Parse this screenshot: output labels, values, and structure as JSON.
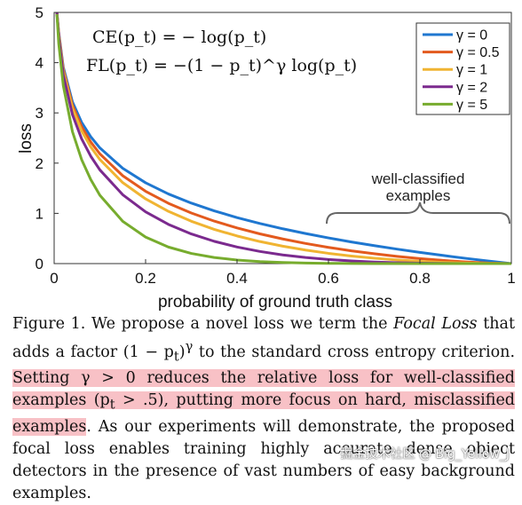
{
  "chart_data": {
    "type": "line",
    "xlabel": "probability of ground truth class",
    "ylabel": "loss",
    "xlim": [
      0,
      1
    ],
    "ylim": [
      0,
      5
    ],
    "xticks": [
      "0",
      "0.2",
      "0.4",
      "0.6",
      "0.8",
      "1"
    ],
    "yticks": [
      "0",
      "1",
      "2",
      "3",
      "4",
      "5"
    ],
    "grid": false,
    "legend_position": "top-right",
    "formula_ce": "CE(p_t) = − log(p_t)",
    "formula_fl": "FL(p_t) = −(1 − p_t)^γ log(p_t)",
    "annotation": [
      "well-classified",
      "examples"
    ],
    "x": [
      0.006,
      0.01,
      0.02,
      0.04,
      0.06,
      0.08,
      0.1,
      0.15,
      0.2,
      0.25,
      0.3,
      0.35,
      0.4,
      0.45,
      0.5,
      0.55,
      0.6,
      0.65,
      0.7,
      0.75,
      0.8,
      0.85,
      0.9,
      0.95,
      1.0
    ],
    "series": [
      {
        "name": "γ = 0",
        "gamma": 0,
        "color": "#1f77d0",
        "values": [
          5.116,
          4.605,
          3.912,
          3.219,
          2.813,
          2.526,
          2.303,
          1.897,
          1.609,
          1.386,
          1.204,
          1.05,
          0.916,
          0.799,
          0.693,
          0.598,
          0.511,
          0.431,
          0.357,
          0.288,
          0.223,
          0.163,
          0.105,
          0.051,
          0.0
        ]
      },
      {
        "name": "γ = 0.5",
        "gamma": 0.5,
        "color": "#e35a1e",
        "values": [
          5.101,
          4.582,
          3.872,
          3.154,
          2.727,
          2.422,
          2.184,
          1.749,
          1.439,
          1.2,
          1.007,
          0.846,
          0.71,
          0.592,
          0.49,
          0.401,
          0.323,
          0.254,
          0.196,
          0.144,
          0.1,
          0.063,
          0.033,
          0.011,
          0.0
        ]
      },
      {
        "name": "γ = 1",
        "gamma": 1,
        "color": "#f0b432",
        "values": [
          5.085,
          4.559,
          3.834,
          3.09,
          2.644,
          2.324,
          2.072,
          1.612,
          1.288,
          1.04,
          0.843,
          0.682,
          0.55,
          0.439,
          0.347,
          0.269,
          0.204,
          0.151,
          0.107,
          0.072,
          0.045,
          0.024,
          0.011,
          0.003,
          0.0
        ]
      },
      {
        "name": "γ = 2",
        "gamma": 2,
        "color": "#7b2a8e",
        "values": [
          5.055,
          4.513,
          3.757,
          2.966,
          2.486,
          2.138,
          1.865,
          1.371,
          1.03,
          0.78,
          0.59,
          0.444,
          0.33,
          0.242,
          0.173,
          0.121,
          0.082,
          0.053,
          0.032,
          0.018,
          0.009,
          0.004,
          0.001,
          0.0,
          0.0
        ]
      },
      {
        "name": "γ = 5",
        "gamma": 5,
        "color": "#77ac2e",
        "values": [
          4.966,
          4.38,
          3.541,
          2.627,
          2.072,
          1.674,
          1.36,
          0.842,
          0.527,
          0.329,
          0.202,
          0.121,
          0.071,
          0.04,
          0.022,
          0.011,
          0.005,
          0.002,
          0.001,
          0.0,
          0.0,
          0.0,
          0.0,
          0.0,
          0.0
        ]
      }
    ]
  },
  "caption": {
    "part1": "Figure 1. We propose a novel loss we term the ",
    "focal_loss": "Focal Loss",
    "part2": " that adds a factor ",
    "factor": "(1 − p",
    "factor_sub": "t",
    "factor_close": ")",
    "factor_sup": "γ",
    "part3": " to the standard cross entropy criterion. ",
    "highlight1": "Setting γ > 0 reduces the relative loss for well-classified examples (p",
    "highlight_sub": "t",
    "highlight2": " > .5), putting more focus on hard, misclassified examples",
    "part4": ". As our experiments will demonstrate, the proposed focal loss enables training highly accurate dense object detectors in the presence of vast numbers of easy background examples."
  },
  "watermark": "掘金技术社区 @ Big_Yellow_J"
}
